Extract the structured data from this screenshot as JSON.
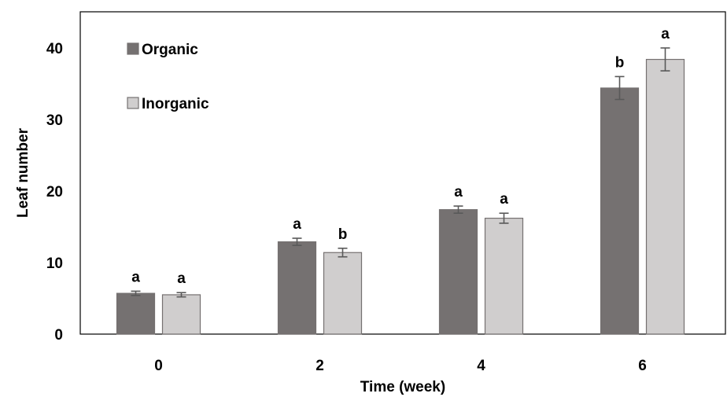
{
  "chart_data": {
    "type": "bar",
    "xlabel": "Time (week)",
    "ylabel": "Leaf number",
    "categories": [
      "0",
      "2",
      "4",
      "6"
    ],
    "ylim": [
      0,
      45
    ],
    "yticks": [
      "0",
      "10",
      "20",
      "30",
      "40"
    ],
    "grid": false,
    "legend_position": "top-left",
    "series": [
      {
        "name": "Organic",
        "color": "#757171",
        "values": [
          5.7,
          12.9,
          17.4,
          34.4
        ],
        "errors": [
          0.3,
          0.5,
          0.5,
          1.6
        ],
        "letters": [
          "a",
          "a",
          "a",
          "b"
        ]
      },
      {
        "name": "Inorganic",
        "color": "#d0cece",
        "values": [
          5.5,
          11.4,
          16.2,
          38.4
        ],
        "errors": [
          0.3,
          0.6,
          0.7,
          1.6
        ],
        "letters": [
          "a",
          "b",
          "a",
          "a"
        ]
      }
    ]
  }
}
